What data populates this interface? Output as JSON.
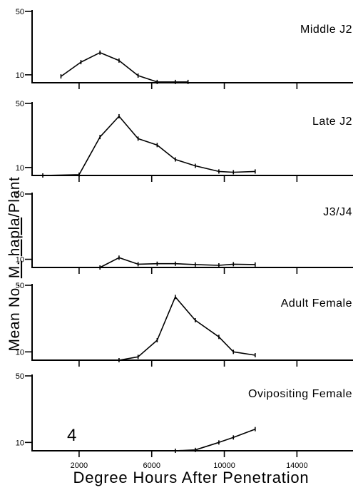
{
  "figure": {
    "panel_number": "4",
    "xlabel": "Degree Hours After Penetration",
    "ylabel_parts": [
      "Mean No. ",
      "M.",
      " ",
      "hapla",
      "/Plant"
    ]
  },
  "chart_data": [
    {
      "type": "line",
      "title": "Middle J2",
      "xlim": [
        0,
        16500
      ],
      "ylim": [
        5,
        50
      ],
      "yticks": [
        {
          "value": 50,
          "label": "50"
        },
        {
          "value": 10,
          "label": "10"
        }
      ],
      "xticks": [
        {
          "value": 2000,
          "label": ""
        },
        {
          "value": 6000,
          "label": ""
        },
        {
          "value": 10000,
          "label": ""
        },
        {
          "value": 14000,
          "label": ""
        }
      ],
      "series": [
        {
          "x": [
            1000,
            2100,
            3150,
            4200,
            5250,
            6300,
            7300,
            8000
          ],
          "y": [
            9,
            18,
            24,
            19,
            9.5,
            5.5,
            5.5,
            5.5
          ]
        }
      ]
    },
    {
      "type": "line",
      "title": "Late J2",
      "xlim": [
        0,
        16500
      ],
      "ylim": [
        5,
        50
      ],
      "yticks": [
        {
          "value": 50,
          "label": "50"
        },
        {
          "value": 10,
          "label": "10"
        }
      ],
      "xticks": [
        {
          "value": 2000,
          "label": ""
        },
        {
          "value": 6000,
          "label": ""
        },
        {
          "value": 10000,
          "label": ""
        },
        {
          "value": 14000,
          "label": ""
        }
      ],
      "series": [
        {
          "x": [
            0,
            2000,
            3150,
            4200,
            5250,
            6300,
            7300,
            8400,
            9700,
            10500,
            11700
          ],
          "y": [
            5,
            5.5,
            29,
            42,
            28,
            24,
            15,
            11,
            7.5,
            7,
            7.5
          ]
        }
      ]
    },
    {
      "type": "line",
      "title": "J3/J4",
      "xlim": [
        0,
        16500
      ],
      "ylim": [
        5,
        50
      ],
      "yticks": [
        {
          "value": 50,
          "label": "50"
        },
        {
          "value": 10,
          "label": "10"
        }
      ],
      "xticks": [
        {
          "value": 2000,
          "label": ""
        },
        {
          "value": 6000,
          "label": ""
        },
        {
          "value": 10000,
          "label": ""
        },
        {
          "value": 14000,
          "label": ""
        }
      ],
      "series": [
        {
          "x": [
            3150,
            4200,
            5250,
            6300,
            7300,
            8400,
            9700,
            10500,
            11700
          ],
          "y": [
            5,
            11,
            7,
            7.3,
            7.3,
            6.8,
            6.3,
            7,
            6.8
          ]
        }
      ]
    },
    {
      "type": "line",
      "title": "Adult Female",
      "xlim": [
        0,
        16500
      ],
      "ylim": [
        5,
        50
      ],
      "yticks": [
        {
          "value": 50,
          "label": "50"
        },
        {
          "value": 10,
          "label": "10"
        }
      ],
      "xticks": [
        {
          "value": 2000,
          "label": ""
        },
        {
          "value": 6000,
          "label": ""
        },
        {
          "value": 10000,
          "label": ""
        },
        {
          "value": 14000,
          "label": ""
        }
      ],
      "series": [
        {
          "x": [
            4200,
            5250,
            6300,
            7300,
            8400,
            9700,
            10500,
            11700
          ],
          "y": [
            5,
            7,
            17,
            43,
            29,
            19,
            10,
            8
          ]
        }
      ]
    },
    {
      "type": "line",
      "title": "Ovipositing Female",
      "xlim": [
        0,
        16500
      ],
      "ylim": [
        5,
        50
      ],
      "yticks": [
        {
          "value": 50,
          "label": "50"
        },
        {
          "value": 10,
          "label": "10"
        }
      ],
      "xticks": [
        {
          "value": 2000,
          "label": "2000"
        },
        {
          "value": 6000,
          "label": "6000"
        },
        {
          "value": 10000,
          "label": "10000"
        },
        {
          "value": 14000,
          "label": "14000"
        }
      ],
      "series": [
        {
          "x": [
            7300,
            8400,
            9700,
            10500,
            11700
          ],
          "y": [
            5,
            5.5,
            10,
            13,
            18
          ]
        }
      ]
    }
  ]
}
